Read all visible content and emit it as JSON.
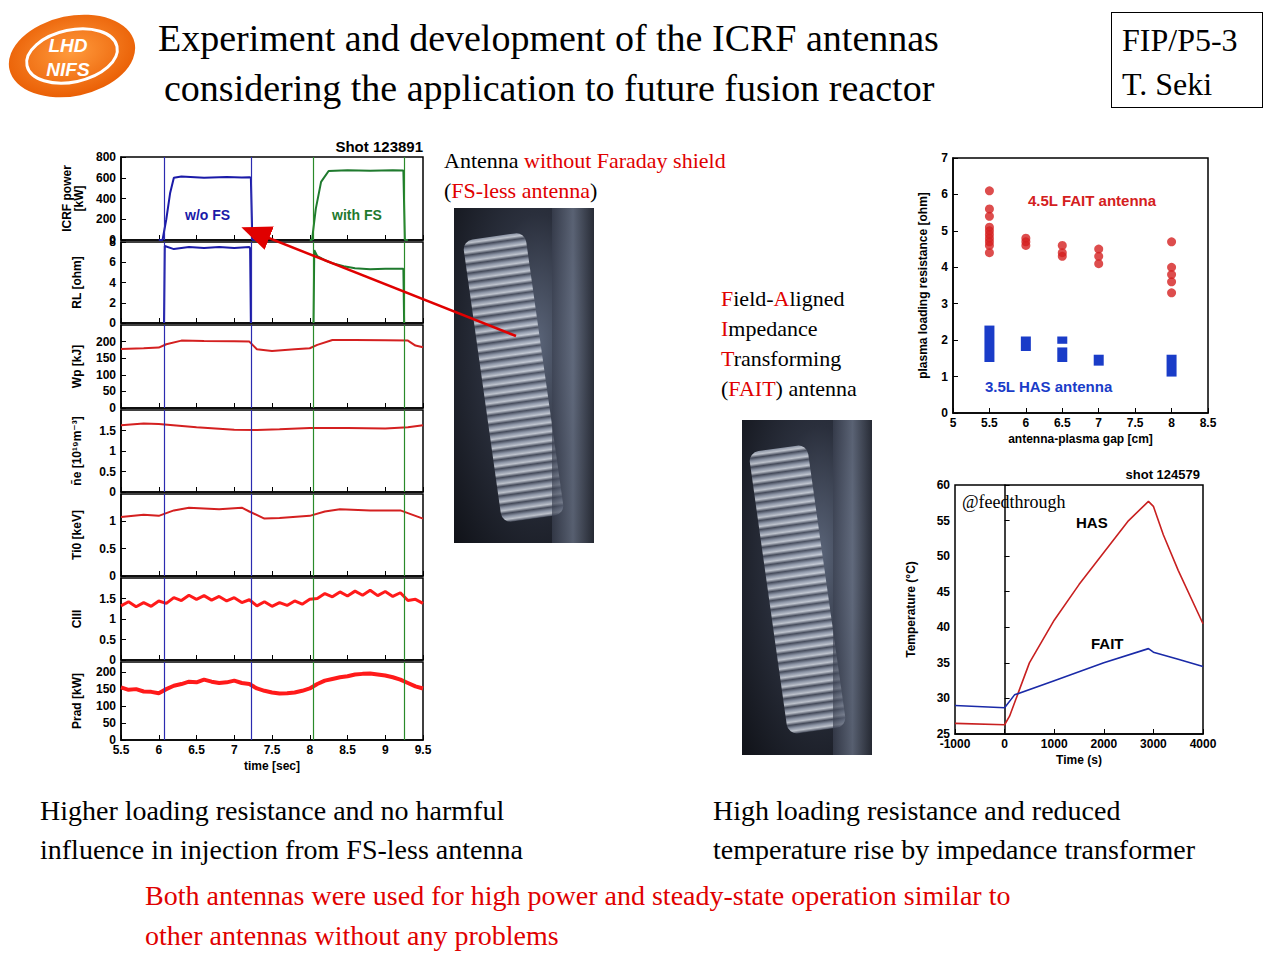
{
  "header": {
    "logo": [
      "LHD",
      "NIFS"
    ],
    "title": [
      "Experiment and development of the ICRF antennas",
      "considering the application to future fusion reactor"
    ],
    "paper_id": "FIP/P5-3",
    "author": "T. Seki"
  },
  "photo_captions": [
    [
      [
        {
          "text": "Antenna ",
          "color": "#000000"
        },
        {
          "text": "without Faraday shield",
          "color": "#e00000"
        }
      ],
      [
        {
          "text": "(",
          "color": "#000000"
        },
        {
          "text": "FS-less antenna",
          "color": "#e00000"
        },
        {
          "text": ")",
          "color": "#000000"
        }
      ]
    ],
    [
      [
        {
          "text": "F",
          "color": "#e00000"
        },
        {
          "text": "ield-",
          "color": "#000000"
        },
        {
          "text": "A",
          "color": "#e00000"
        },
        {
          "text": "ligned",
          "color": "#000000"
        }
      ],
      [
        {
          "text": "I",
          "color": "#e00000"
        },
        {
          "text": "mpedance",
          "color": "#000000"
        }
      ],
      [
        {
          "text": "T",
          "color": "#e00000"
        },
        {
          "text": "ransforming",
          "color": "#000000"
        }
      ],
      [
        {
          "text": "(",
          "color": "#000000"
        },
        {
          "text": "FAIT",
          "color": "#e00000"
        },
        {
          "text": ") antenna",
          "color": "#000000"
        }
      ]
    ]
  ],
  "captions": {
    "left": [
      "Higher loading resistance and no harmful",
      "influence in injection from FS-less antenna"
    ],
    "right": [
      "High loading resistance and reduced",
      "temperature rise by impedance transformer"
    ],
    "conclusion": {
      "color": "#e00000",
      "lines": [
        "Both antennas were used for high power and steady-state operation similar to",
        "other antennas without any problems"
      ]
    }
  },
  "chart_data": [
    {
      "type": "line",
      "title": "Shot 123891",
      "xlabel": "time [sec]",
      "xlim": [
        5.5,
        9.5
      ],
      "xticks": [
        5.5,
        6,
        6.5,
        7,
        7.5,
        8,
        8.5,
        9,
        9.5
      ],
      "grid": false,
      "vlines": [
        {
          "x": 6.07,
          "color": "#2b2bb0"
        },
        {
          "x": 7.22,
          "color": "#2b2bb0"
        },
        {
          "x": 8.05,
          "color": "#2a8a2a"
        },
        {
          "x": 9.25,
          "color": "#2a8a2a"
        }
      ],
      "panels": [
        {
          "ylabel": "ICRF power\n[kW]",
          "ylim": [
            0,
            800
          ],
          "yticks": [
            0,
            200,
            400,
            600,
            800
          ],
          "series": [
            {
              "name": "w/o FS",
              "color": "#1a1aa8",
              "x": [
                6.0,
                6.05,
                6.1,
                6.15,
                6.2,
                6.3,
                6.6,
                6.9,
                7.1,
                7.2,
                7.22,
                7.24,
                7.3
              ],
              "values": [
                0,
                0,
                200,
                450,
                600,
                612,
                600,
                608,
                603,
                605,
                600,
                0,
                0
              ]
            },
            {
              "name": "with FS",
              "color": "#1f7a2e",
              "x": [
                8.0,
                8.03,
                8.08,
                8.15,
                8.25,
                8.5,
                8.8,
                9.1,
                9.24,
                9.26,
                9.3
              ],
              "values": [
                0,
                0,
                300,
                560,
                665,
                672,
                668,
                672,
                670,
                0,
                0
              ]
            }
          ]
        },
        {
          "ylabel": "RL [ohm]",
          "ylim": [
            0,
            8
          ],
          "yticks": [
            0,
            2,
            4,
            6,
            8
          ],
          "series": [
            {
              "color": "#1a1aa8",
              "x": [
                6.07,
                6.08,
                6.2,
                6.4,
                6.6,
                6.8,
                7.0,
                7.2,
                7.21,
                7.22
              ],
              "values": [
                0,
                7.6,
                7.3,
                7.5,
                7.4,
                7.5,
                7.4,
                7.5,
                7.4,
                0
              ]
            },
            {
              "color": "#1f7a2e",
              "x": [
                8.05,
                8.06,
                8.1,
                8.2,
                8.3,
                8.45,
                8.6,
                8.8,
                9.0,
                9.24,
                9.25
              ],
              "values": [
                0,
                7.2,
                6.6,
                6.2,
                5.9,
                5.6,
                5.4,
                5.3,
                5.35,
                5.35,
                0
              ]
            }
          ]
        },
        {
          "ylabel": "Wp [kJ]",
          "ylim": [
            0,
            250
          ],
          "yticks": [
            0,
            50,
            100,
            150,
            200
          ],
          "series": [
            {
              "color": "#d42020",
              "x": [
                5.5,
                5.8,
                6.0,
                6.1,
                6.3,
                6.6,
                7.0,
                7.2,
                7.3,
                7.5,
                7.8,
                8.0,
                8.1,
                8.3,
                8.6,
                9.0,
                9.3,
                9.4,
                9.5
              ],
              "values": [
                178,
                180,
                182,
                192,
                203,
                202,
                201,
                200,
                177,
                172,
                177,
                180,
                190,
                205,
                205,
                204,
                203,
                188,
                183
              ]
            }
          ]
        },
        {
          "ylabel": "n̄e [10¹⁹m⁻³]",
          "ylim": [
            0,
            2
          ],
          "yticks": [
            0,
            0.5,
            1,
            1.5
          ],
          "series": [
            {
              "color": "#d42020",
              "x": [
                5.5,
                5.8,
                6.0,
                6.5,
                7.0,
                7.3,
                7.6,
                8.0,
                8.5,
                9.0,
                9.3,
                9.5
              ],
              "values": [
                1.63,
                1.67,
                1.66,
                1.58,
                1.52,
                1.51,
                1.53,
                1.56,
                1.56,
                1.55,
                1.58,
                1.63
              ]
            }
          ]
        },
        {
          "ylabel": "Ti0 [keV]",
          "ylim": [
            0,
            1.5
          ],
          "yticks": [
            0,
            0.5,
            1
          ],
          "series": [
            {
              "color": "#d42020",
              "x": [
                5.5,
                5.8,
                6.0,
                6.2,
                6.4,
                6.8,
                7.1,
                7.2,
                7.4,
                7.6,
                8.0,
                8.2,
                8.4,
                8.8,
                9.2,
                9.4,
                9.5
              ],
              "values": [
                1.08,
                1.12,
                1.1,
                1.2,
                1.25,
                1.22,
                1.25,
                1.18,
                1.05,
                1.06,
                1.1,
                1.18,
                1.22,
                1.2,
                1.2,
                1.1,
                1.05
              ]
            }
          ]
        },
        {
          "ylabel": "CIII",
          "ylim": [
            0,
            2
          ],
          "yticks": [
            0,
            0.5,
            1,
            1.5
          ],
          "series": [
            {
              "color": "#ff1a1a",
              "x": [
                5.5,
                5.6,
                5.7,
                5.8,
                5.9,
                6.0,
                6.1,
                6.2,
                6.3,
                6.4,
                6.5,
                6.6,
                6.7,
                6.8,
                6.9,
                7.0,
                7.1,
                7.2,
                7.3,
                7.4,
                7.5,
                7.6,
                7.7,
                7.8,
                7.9,
                8.0,
                8.1,
                8.2,
                8.3,
                8.4,
                8.5,
                8.6,
                8.7,
                8.8,
                8.9,
                9.0,
                9.1,
                9.2,
                9.3,
                9.4,
                9.5
              ],
              "values": [
                1.32,
                1.42,
                1.3,
                1.4,
                1.31,
                1.44,
                1.38,
                1.52,
                1.45,
                1.58,
                1.48,
                1.57,
                1.46,
                1.55,
                1.44,
                1.52,
                1.4,
                1.47,
                1.32,
                1.42,
                1.31,
                1.4,
                1.33,
                1.44,
                1.36,
                1.48,
                1.5,
                1.62,
                1.54,
                1.66,
                1.56,
                1.68,
                1.58,
                1.7,
                1.57,
                1.67,
                1.55,
                1.64,
                1.45,
                1.48,
                1.38
              ]
            }
          ]
        },
        {
          "ylabel": "Prad [kW]",
          "ylim": [
            0,
            230
          ],
          "yticks": [
            0,
            50,
            100,
            150,
            200
          ],
          "series": [
            {
              "color": "#ff1a1a",
              "x": [
                5.5,
                5.6,
                5.7,
                5.8,
                5.9,
                6.0,
                6.1,
                6.2,
                6.3,
                6.4,
                6.5,
                6.6,
                6.7,
                6.8,
                6.9,
                7.0,
                7.1,
                7.2,
                7.3,
                7.4,
                7.5,
                7.6,
                7.7,
                7.8,
                7.9,
                8.0,
                8.1,
                8.2,
                8.3,
                8.4,
                8.5,
                8.6,
                8.7,
                8.8,
                8.9,
                9.0,
                9.1,
                9.2,
                9.3,
                9.4,
                9.5
              ],
              "values": [
                155,
                148,
                150,
                143,
                142,
                138,
                150,
                160,
                165,
                172,
                170,
                178,
                172,
                168,
                170,
                175,
                168,
                165,
                152,
                145,
                140,
                137,
                138,
                140,
                145,
                152,
                165,
                175,
                180,
                185,
                188,
                193,
                195,
                196,
                193,
                190,
                185,
                178,
                168,
                158,
                152
              ]
            }
          ]
        }
      ]
    },
    {
      "type": "scatter",
      "xlabel": "antenna-plasma gap [cm]",
      "ylabel": "plasma loading resistance [ohm]",
      "xlim": [
        5,
        8.5
      ],
      "xticks": [
        5,
        5.5,
        6,
        6.5,
        7,
        7.5,
        8,
        8.5
      ],
      "ylim": [
        0,
        7
      ],
      "yticks": [
        0,
        1,
        2,
        3,
        4,
        5,
        6,
        7
      ],
      "grid": false,
      "series": [
        {
          "name": "4.5L FAIT antenna",
          "color": "#d42020",
          "marker": "circle",
          "x": [
            5.5,
            5.5,
            5.5,
            5.5,
            5.5,
            5.5,
            5.5,
            5.5,
            5.5,
            5.5,
            6,
            6,
            6,
            6.5,
            6.5,
            6.5,
            7,
            7,
            7,
            8,
            8,
            8,
            8,
            8
          ],
          "values": [
            6.1,
            5.6,
            5.4,
            5.1,
            5.0,
            4.9,
            4.8,
            4.7,
            4.6,
            4.4,
            4.8,
            4.7,
            4.6,
            4.6,
            4.4,
            4.3,
            4.5,
            4.3,
            4.1,
            4.7,
            4.0,
            3.8,
            3.6,
            3.3
          ]
        },
        {
          "name": "3.5L HAS antenna",
          "color": "#1a3cc8",
          "marker": "rect",
          "x": [
            5.5,
            6,
            6.5,
            6.5,
            7,
            8
          ],
          "low": [
            1.4,
            1.7,
            1.4,
            1.9,
            1.3,
            1.0
          ],
          "high": [
            2.4,
            2.1,
            1.8,
            2.1,
            1.6,
            1.6
          ]
        }
      ]
    },
    {
      "type": "line",
      "title": "shot 124579",
      "annotation": "@feedthrough",
      "xlabel": "Time (s)",
      "ylabel": "Temperature (°C)",
      "xlim": [
        -1000,
        4000
      ],
      "xticks": [
        -1000,
        0,
        1000,
        2000,
        3000,
        4000
      ],
      "ylim": [
        25,
        60
      ],
      "yticks": [
        25,
        30,
        35,
        40,
        45,
        50,
        55,
        60
      ],
      "grid": false,
      "series": [
        {
          "name": "HAS",
          "color": "#c82020",
          "x": [
            -1000,
            0,
            100,
            500,
            1000,
            1500,
            2000,
            2500,
            2900,
            3000,
            3200,
            3500,
            4000
          ],
          "values": [
            26.5,
            26.3,
            27.5,
            35,
            41,
            46,
            50.5,
            55,
            57.7,
            57,
            53,
            48,
            40.5
          ]
        },
        {
          "name": "FAIT",
          "color": "#1a2aa8",
          "x": [
            -1000,
            0,
            200,
            1000,
            2000,
            2900,
            3000,
            3500,
            4000
          ],
          "values": [
            29,
            28.7,
            30.5,
            32.5,
            35,
            37,
            36.5,
            35.5,
            34.5
          ]
        }
      ]
    }
  ]
}
